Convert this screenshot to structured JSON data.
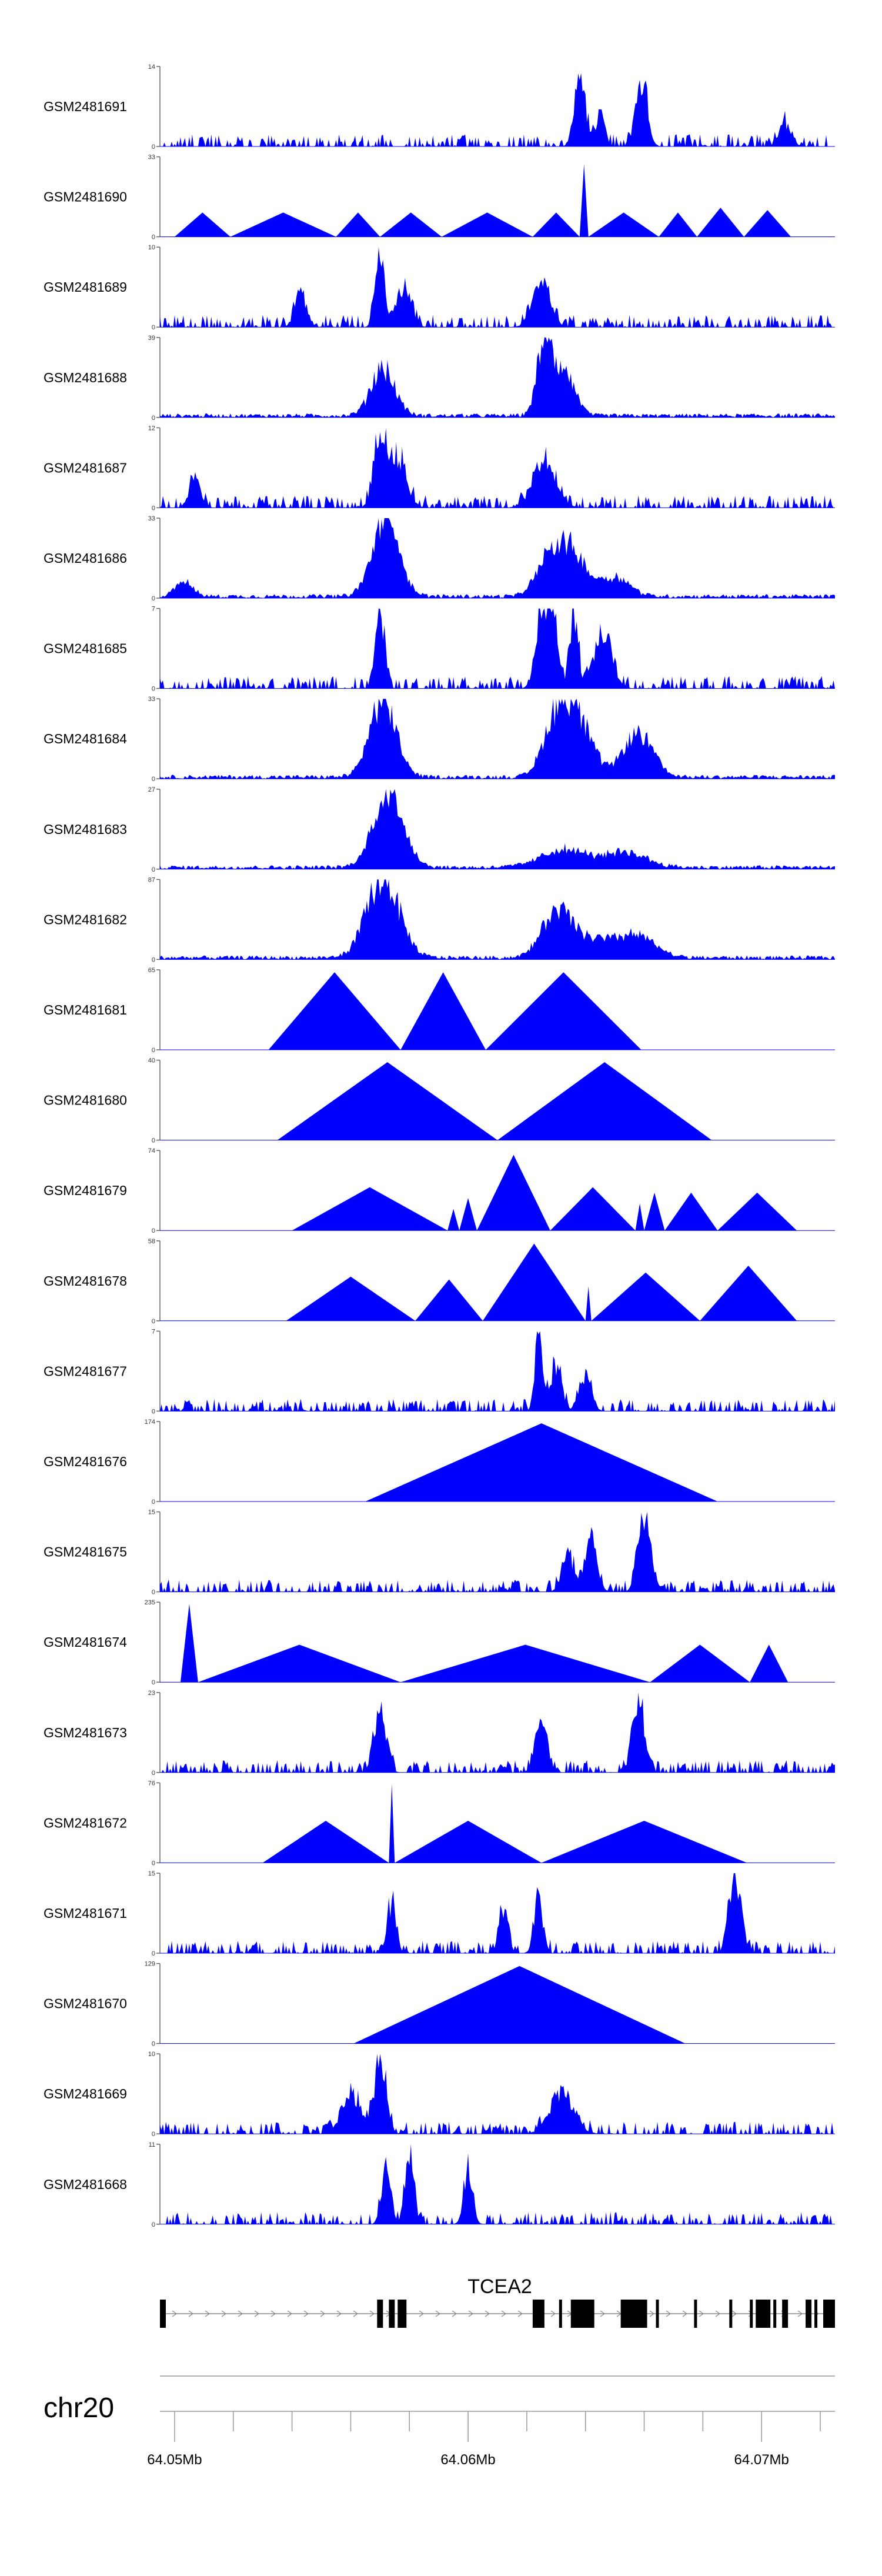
{
  "chart_data": {
    "type": "area",
    "title": "",
    "chromosome": "chr20",
    "gene": {
      "name": "TCEA2",
      "strand": "+"
    },
    "xaxis": {
      "range": [
        64.0495,
        64.0725
      ],
      "unit": "Mb",
      "ticks": [
        {
          "value": 64.05,
          "label": "64.05Mb"
        },
        {
          "value": 64.06,
          "label": "64.06Mb"
        },
        {
          "value": 64.07,
          "label": "64.07Mb"
        }
      ],
      "minor_ticks": [
        64.052,
        64.054,
        64.056,
        64.058,
        64.062,
        64.064,
        64.066,
        64.068,
        64.072
      ]
    },
    "exons": [
      [
        64.0495,
        64.0497
      ],
      [
        64.0569,
        64.0571
      ],
      [
        64.0573,
        64.0575
      ],
      [
        64.0576,
        64.0579
      ],
      [
        64.0622,
        64.0626
      ],
      [
        64.0631,
        64.0632
      ],
      [
        64.0635,
        64.0643
      ],
      [
        64.0652,
        64.0661
      ],
      [
        64.0664,
        64.0665
      ],
      [
        64.0677,
        64.0678
      ],
      [
        64.0689,
        64.069
      ],
      [
        64.0696,
        64.0697
      ],
      [
        64.0698,
        64.0703
      ],
      [
        64.0704,
        64.0705
      ],
      [
        64.0707,
        64.0709
      ],
      [
        64.0715,
        64.0717
      ],
      [
        64.0718,
        64.0719
      ],
      [
        64.0721,
        64.0725
      ]
    ],
    "tracks": [
      {
        "name": "GSM2481691",
        "ymax": 14,
        "style": "noisy",
        "peaks": [
          [
            64.0638,
            12,
            0.00018
          ],
          [
            64.0659,
            11,
            0.0002
          ],
          [
            64.0645,
            6,
            0.00015
          ],
          [
            64.0708,
            4,
            0.0002
          ]
        ]
      },
      {
        "name": "GSM2481690",
        "ymax": 33,
        "style": "triangles",
        "segments": [
          [
            64.05,
            64.0519,
            10
          ],
          [
            64.0519,
            64.0555,
            10
          ],
          [
            64.0555,
            64.057,
            10
          ],
          [
            64.057,
            64.0591,
            10
          ],
          [
            64.0591,
            64.0622,
            10
          ],
          [
            64.0622,
            64.0638,
            10
          ],
          [
            64.0638,
            64.0641,
            30
          ],
          [
            64.0641,
            64.0665,
            10
          ],
          [
            64.0665,
            64.0678,
            10
          ],
          [
            64.0678,
            64.0694,
            12
          ],
          [
            64.0694,
            64.071,
            11
          ]
        ]
      },
      {
        "name": "GSM2481689",
        "ymax": 10,
        "style": "noisy",
        "peaks": [
          [
            64.057,
            9.5,
            0.00015
          ],
          [
            64.0578,
            5,
            0.00025
          ],
          [
            64.0625,
            5.5,
            0.0003
          ],
          [
            64.0543,
            4,
            0.0002
          ]
        ]
      },
      {
        "name": "GSM2481688",
        "ymax": 39,
        "style": "peaks",
        "peaks": [
          [
            64.0571,
            23,
            0.0004
          ],
          [
            64.0626,
            36,
            0.00025
          ],
          [
            64.0633,
            20,
            0.00035
          ]
        ]
      },
      {
        "name": "GSM2481687",
        "ymax": 12,
        "style": "noisy",
        "peaks": [
          [
            64.057,
            11.5,
            0.0002
          ],
          [
            64.0576,
            7,
            0.0003
          ],
          [
            64.0626,
            6,
            0.0004
          ],
          [
            64.0507,
            4,
            0.0002
          ]
        ]
      },
      {
        "name": "GSM2481686",
        "ymax": 33,
        "style": "peaks",
        "peaks": [
          [
            64.0572,
            32,
            0.00045
          ],
          [
            64.0627,
            14,
            0.0004
          ],
          [
            64.0635,
            19,
            0.0005
          ],
          [
            64.065,
            8,
            0.0005
          ],
          [
            64.0503,
            6,
            0.0003
          ]
        ]
      },
      {
        "name": "GSM2481685",
        "ymax": 7,
        "style": "noisy",
        "peaks": [
          [
            64.057,
            6.8,
            0.00015
          ],
          [
            64.0629,
            6.5,
            0.00015
          ],
          [
            64.0636,
            6.5,
            0.00015
          ],
          [
            64.0646,
            5,
            0.0003
          ],
          [
            64.0625,
            6.5,
            0.0002
          ]
        ]
      },
      {
        "name": "GSM2481684",
        "ymax": 33,
        "style": "peaks",
        "peaks": [
          [
            64.0571,
            32,
            0.00045
          ],
          [
            64.0636,
            27,
            0.00055
          ],
          [
            64.0629,
            15,
            0.0004
          ],
          [
            64.0658,
            18,
            0.0005
          ]
        ]
      },
      {
        "name": "GSM2481683",
        "ymax": 27,
        "style": "peaks",
        "peaks": [
          [
            64.0573,
            26,
            0.0005
          ],
          [
            64.0633,
            6,
            0.0008
          ],
          [
            64.0654,
            5,
            0.0007
          ]
        ]
      },
      {
        "name": "GSM2481682",
        "ymax": 87,
        "style": "peaks",
        "peaks": [
          [
            64.0571,
            86,
            0.00055
          ],
          [
            64.063,
            45,
            0.0005
          ],
          [
            64.0642,
            20,
            0.0008
          ],
          [
            64.0658,
            22,
            0.0006
          ]
        ]
      },
      {
        "name": "GSM2481681",
        "ymax": 65,
        "style": "triangles",
        "segments": [
          [
            64.0532,
            64.0577,
            63
          ],
          [
            64.0577,
            64.0606,
            63
          ],
          [
            64.0606,
            64.0659,
            63
          ]
        ]
      },
      {
        "name": "GSM2481680",
        "ymax": 40,
        "style": "triangles",
        "segments": [
          [
            64.0535,
            64.061,
            39
          ],
          [
            64.061,
            64.0683,
            39
          ]
        ]
      },
      {
        "name": "GSM2481679",
        "ymax": 74,
        "style": "triangles",
        "segments": [
          [
            64.054,
            64.0593,
            40
          ],
          [
            64.0593,
            64.0597,
            20
          ],
          [
            64.0597,
            64.0603,
            30
          ],
          [
            64.0603,
            64.0628,
            70
          ],
          [
            64.0628,
            64.0657,
            40
          ],
          [
            64.0657,
            64.066,
            25
          ],
          [
            64.066,
            64.0667,
            35
          ],
          [
            64.0667,
            64.0685,
            35
          ],
          [
            64.0685,
            64.0712,
            35
          ]
        ]
      },
      {
        "name": "GSM2481678",
        "ymax": 58,
        "style": "triangles",
        "segments": [
          [
            64.0538,
            64.0582,
            32
          ],
          [
            64.0582,
            64.0605,
            30
          ],
          [
            64.0605,
            64.064,
            56
          ],
          [
            64.064,
            64.0642,
            25
          ],
          [
            64.0642,
            64.0679,
            35
          ],
          [
            64.0679,
            64.0712,
            40
          ]
        ]
      },
      {
        "name": "GSM2481677",
        "ymax": 7,
        "style": "noisy",
        "peaks": [
          [
            64.0624,
            6.8,
            0.00012
          ],
          [
            64.063,
            3.5,
            0.0002
          ],
          [
            64.064,
            3,
            0.0002
          ]
        ]
      },
      {
        "name": "GSM2481676",
        "ymax": 174,
        "style": "triangles",
        "segments": [
          [
            64.0565,
            64.0685,
            170
          ]
        ]
      },
      {
        "name": "GSM2481675",
        "ymax": 15,
        "style": "noisy",
        "peaks": [
          [
            64.066,
            14.5,
            0.0002
          ],
          [
            64.0634,
            7,
            0.0002
          ],
          [
            64.0642,
            9,
            0.0002
          ]
        ]
      },
      {
        "name": "GSM2481674",
        "ymax": 235,
        "style": "triangles",
        "segments": [
          [
            64.0502,
            64.0508,
            230
          ],
          [
            64.0508,
            64.0577,
            110
          ],
          [
            64.0577,
            64.0662,
            110
          ],
          [
            64.0662,
            64.0696,
            110
          ],
          [
            64.0696,
            64.0709,
            110
          ]
        ]
      },
      {
        "name": "GSM2481673",
        "ymax": 23,
        "style": "noisy",
        "peaks": [
          [
            64.057,
            18,
            0.0002
          ],
          [
            64.0658,
            21,
            0.0002
          ],
          [
            64.0625,
            16,
            0.0002
          ]
        ]
      },
      {
        "name": "GSM2481672",
        "ymax": 76,
        "style": "triangles",
        "segments": [
          [
            64.053,
            64.0573,
            40
          ],
          [
            64.0573,
            64.0575,
            75
          ],
          [
            64.0575,
            64.0625,
            40
          ],
          [
            64.0625,
            64.0695,
            40
          ]
        ]
      },
      {
        "name": "GSM2481671",
        "ymax": 15,
        "style": "noisy",
        "peaks": [
          [
            64.0691,
            14.5,
            0.0002
          ],
          [
            64.0624,
            10,
            0.00015
          ],
          [
            64.0612,
            8,
            0.00015
          ],
          [
            64.0574,
            9,
            0.00015
          ]
        ]
      },
      {
        "name": "GSM2481670",
        "ymax": 129,
        "style": "triangles",
        "segments": [
          [
            64.0561,
            64.0674,
            125
          ]
        ]
      },
      {
        "name": "GSM2481669",
        "ymax": 10,
        "style": "noisy",
        "peaks": [
          [
            64.057,
            9.5,
            0.0002
          ],
          [
            64.056,
            5,
            0.0003
          ],
          [
            64.0632,
            5,
            0.0004
          ]
        ]
      },
      {
        "name": "GSM2481668",
        "ymax": 11,
        "style": "noisy",
        "peaks": [
          [
            64.058,
            10.5,
            0.00015
          ],
          [
            64.0572,
            8,
            0.00015
          ],
          [
            64.06,
            7,
            0.00015
          ]
        ]
      }
    ]
  }
}
